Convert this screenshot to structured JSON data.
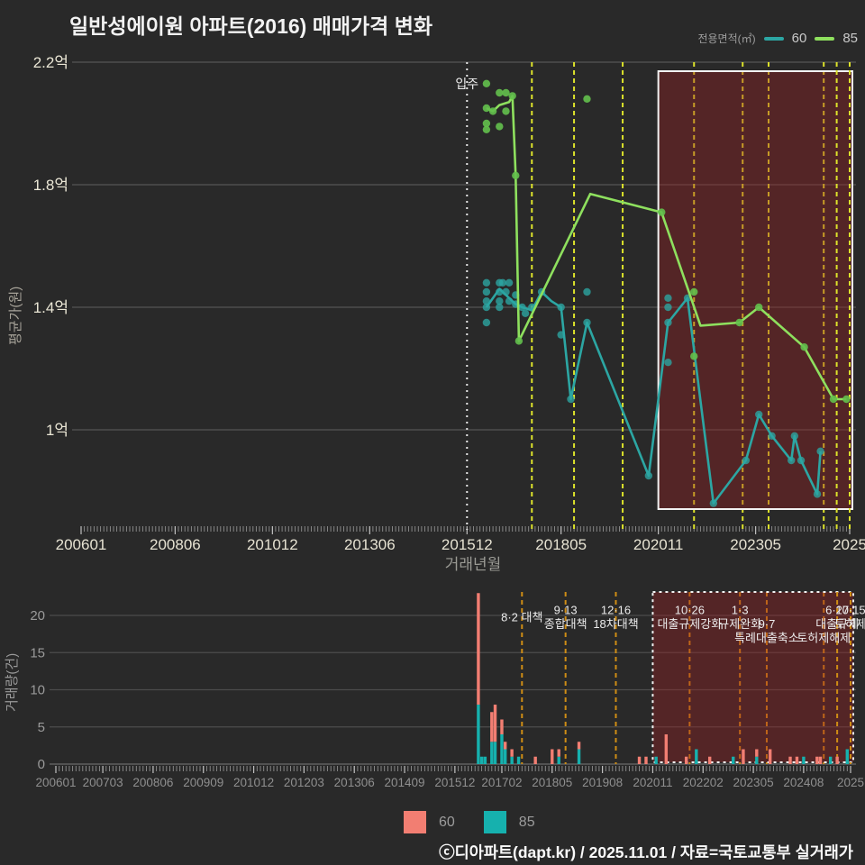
{
  "title": "일반성에이원 아파트(2016) 매매가격 변화",
  "legend_top": {
    "label": "전용면적(㎡)",
    "items": [
      {
        "label": "60",
        "color": "#2ca6a3"
      },
      {
        "label": "85",
        "color": "#8ee05e"
      }
    ]
  },
  "legend_bottom": {
    "items": [
      {
        "label": "60",
        "color": "#f27e72"
      },
      {
        "label": "85",
        "color": "#16b1ae"
      }
    ]
  },
  "footer": "ⓒ디아파트(dapt.kr) / 2025.11.01 / 자료=국토교통부 실거래가",
  "colors": {
    "background": "#292929",
    "grid": "#545454",
    "axis_tick": "#8f8f8f",
    "ytick_label": "#eae6d5",
    "xtick_label_top": "#e6e2d2",
    "xtick_label_bottom": "#8f8f8f",
    "policy_line_top": "#dde32b",
    "policy_line_bottom": "#cf8d15",
    "highlight_fill": "rgba(160,30,34,0.36)",
    "highlight_border": "#f2f2f2",
    "move_in_line": "#e8e8e8",
    "annotation_text": "#ececec"
  },
  "highlight_region": {
    "from": "2020-11",
    "to": "2025-10"
  },
  "move_in": {
    "label": "입주",
    "date": "2015-12"
  },
  "policy_events": [
    {
      "date": "2017-08",
      "rows": [
        {
          "text": "8·2 대책",
          "row": 1.5
        }
      ],
      "late": false
    },
    {
      "date": "2018-09",
      "rows": [
        {
          "text": "9·13",
          "row": 1
        },
        {
          "text": "종합대책",
          "row": 2
        }
      ],
      "late": false
    },
    {
      "date": "2019-12",
      "rows": [
        {
          "text": "12·16",
          "row": 1
        },
        {
          "text": "18차대책",
          "row": 2
        }
      ],
      "late": false
    },
    {
      "date": "2021-10",
      "rows": [
        {
          "text": "10·26",
          "row": 1
        },
        {
          "text": "대출규제강화",
          "row": 2
        }
      ],
      "late": false
    },
    {
      "date": "2023-01",
      "rows": [
        {
          "text": "1·3",
          "row": 1
        },
        {
          "text": "규제완화",
          "row": 2
        }
      ],
      "late": false
    },
    {
      "date": "2023-09",
      "rows": [
        {
          "text": "9·7",
          "row": 2
        },
        {
          "text": "특례대출축소",
          "row": 3
        }
      ],
      "late": false
    },
    {
      "date": "2025-02",
      "rows": [
        {
          "text": "토허제해제",
          "row": 3
        }
      ],
      "late": false
    },
    {
      "date": "2025-06",
      "rows": [
        {
          "text": "6·27",
          "row": 1
        },
        {
          "text": "대출규제",
          "row": 2
        }
      ],
      "late": true
    },
    {
      "date": "2025-10",
      "rows": [
        {
          "text": "10·15",
          "row": 1
        },
        {
          "text": "토허제",
          "row": 2
        }
      ],
      "late": true
    }
  ],
  "chart_data": [
    {
      "type": "scatter",
      "panel": "price",
      "ylabel": "평균가(원)",
      "xlabel": "거래년월",
      "unit": "억원",
      "ylim": [
        0.62,
        2.25
      ],
      "yticks": [
        {
          "value": 2.2,
          "label": "2.2억"
        },
        {
          "value": 1.8,
          "label": "1.8억"
        },
        {
          "value": 1.4,
          "label": "1.4억"
        },
        {
          "value": 1.0,
          "label": "1억"
        }
      ],
      "xticks": [
        {
          "date": "2006-01",
          "label": "200601"
        },
        {
          "date": "2008-06",
          "label": "200806"
        },
        {
          "date": "2010-12",
          "label": "201012"
        },
        {
          "date": "2013-06",
          "label": "201306"
        },
        {
          "date": "2015-12",
          "label": "201512"
        },
        {
          "date": "2018-05",
          "label": "201805"
        },
        {
          "date": "2020-11",
          "label": "202011"
        },
        {
          "date": "2023-05",
          "label": "202305"
        },
        {
          "date": "2025-10",
          "label": "2025"
        }
      ],
      "series": [
        {
          "name": "60",
          "line": [
            [
              "2016-06",
              1.4
            ],
            [
              "2016-08",
              1.43
            ],
            [
              "2016-10",
              1.46
            ],
            [
              "2017-01",
              1.43
            ],
            [
              "2017-03",
              1.41
            ],
            [
              "2017-05",
              1.4
            ],
            [
              "2017-08",
              1.39
            ],
            [
              "2017-11",
              1.45
            ],
            [
              "2018-02",
              1.42
            ],
            [
              "2018-05",
              1.4
            ],
            [
              "2018-08",
              1.1
            ],
            [
              "2019-01",
              1.35
            ],
            [
              "2020-08",
              0.85
            ],
            [
              "2021-02",
              1.35
            ],
            [
              "2021-08",
              1.43
            ],
            [
              "2022-04",
              0.76
            ],
            [
              "2023-02",
              0.9
            ],
            [
              "2023-06",
              1.05
            ],
            [
              "2023-10",
              0.98
            ],
            [
              "2024-04",
              0.9
            ],
            [
              "2024-05",
              0.98
            ],
            [
              "2024-07",
              0.9
            ],
            [
              "2024-12",
              0.79
            ],
            [
              "2025-01",
              0.93
            ]
          ],
          "scatter": [
            [
              "2016-06",
              1.48
            ],
            [
              "2016-06",
              1.45
            ],
            [
              "2016-06",
              1.42
            ],
            [
              "2016-06",
              1.4
            ],
            [
              "2016-06",
              1.35
            ],
            [
              "2016-10",
              1.48
            ],
            [
              "2016-10",
              1.45
            ],
            [
              "2016-10",
              1.42
            ],
            [
              "2016-10",
              1.4
            ],
            [
              "2016-11",
              1.48
            ],
            [
              "2016-12",
              1.45
            ],
            [
              "2017-01",
              1.48
            ],
            [
              "2017-01",
              1.42
            ],
            [
              "2017-03",
              1.44
            ],
            [
              "2017-03",
              1.41
            ],
            [
              "2017-05",
              1.4
            ],
            [
              "2017-06",
              1.38
            ],
            [
              "2017-08",
              1.4
            ],
            [
              "2017-11",
              1.45
            ],
            [
              "2018-05",
              1.4
            ],
            [
              "2018-05",
              1.31
            ],
            [
              "2018-08",
              1.1
            ],
            [
              "2019-01",
              1.45
            ],
            [
              "2019-01",
              1.35
            ],
            [
              "2020-08",
              0.85
            ],
            [
              "2021-02",
              1.43
            ],
            [
              "2021-02",
              1.4
            ],
            [
              "2021-02",
              1.35
            ],
            [
              "2021-02",
              1.22
            ],
            [
              "2021-08",
              1.43
            ],
            [
              "2022-04",
              0.76
            ],
            [
              "2023-02",
              0.9
            ],
            [
              "2023-06",
              1.05
            ],
            [
              "2023-10",
              0.98
            ],
            [
              "2024-04",
              0.9
            ],
            [
              "2024-05",
              0.98
            ],
            [
              "2024-07",
              0.9
            ],
            [
              "2024-12",
              0.79
            ],
            [
              "2025-01",
              0.93
            ]
          ]
        },
        {
          "name": "85",
          "line": [
            [
              "2016-06",
              2.05
            ],
            [
              "2016-08",
              2.04
            ],
            [
              "2016-10",
              2.06
            ],
            [
              "2017-01",
              2.07
            ],
            [
              "2017-02",
              2.09
            ],
            [
              "2017-03",
              1.83
            ],
            [
              "2017-04",
              1.29
            ],
            [
              "2019-02",
              1.77
            ],
            [
              "2020-12",
              1.71
            ],
            [
              "2021-12",
              1.34
            ],
            [
              "2022-12",
              1.35
            ],
            [
              "2023-06",
              1.4
            ],
            [
              "2024-08",
              1.27
            ],
            [
              "2025-05",
              1.1
            ],
            [
              "2025-09",
              1.1
            ]
          ],
          "scatter": [
            [
              "2016-06",
              2.13
            ],
            [
              "2016-06",
              2.05
            ],
            [
              "2016-06",
              2.0
            ],
            [
              "2016-06",
              1.98
            ],
            [
              "2016-08",
              2.04
            ],
            [
              "2016-10",
              2.1
            ],
            [
              "2016-10",
              1.99
            ],
            [
              "2016-12",
              2.1
            ],
            [
              "2016-12",
              2.04
            ],
            [
              "2017-02",
              2.09
            ],
            [
              "2017-03",
              1.83
            ],
            [
              "2017-04",
              1.29
            ],
            [
              "2019-01",
              2.08
            ],
            [
              "2020-12",
              1.71
            ],
            [
              "2021-10",
              1.45
            ],
            [
              "2021-10",
              1.24
            ],
            [
              "2022-12",
              1.35
            ],
            [
              "2023-06",
              1.4
            ],
            [
              "2024-08",
              1.27
            ],
            [
              "2025-05",
              1.1
            ],
            [
              "2025-09",
              1.1
            ]
          ]
        }
      ]
    },
    {
      "type": "bar",
      "panel": "volume",
      "ylabel": "거래량(건)",
      "ylim": [
        0,
        24
      ],
      "yticks": [
        0,
        5,
        10,
        15,
        20
      ],
      "xticks": [
        {
          "date": "2006-01",
          "label": "200601"
        },
        {
          "date": "2007-03",
          "label": "200703"
        },
        {
          "date": "2008-06",
          "label": "200806"
        },
        {
          "date": "2009-09",
          "label": "200909"
        },
        {
          "date": "2010-12",
          "label": "201012"
        },
        {
          "date": "2012-03",
          "label": "201203"
        },
        {
          "date": "2013-06",
          "label": "201306"
        },
        {
          "date": "2014-09",
          "label": "201409"
        },
        {
          "date": "2015-12",
          "label": "201512"
        },
        {
          "date": "2017-02",
          "label": "201702"
        },
        {
          "date": "2018-05",
          "label": "201805"
        },
        {
          "date": "2019-08",
          "label": "201908"
        },
        {
          "date": "2020-11",
          "label": "202011"
        },
        {
          "date": "2022-02",
          "label": "202202"
        },
        {
          "date": "2023-05",
          "label": "202305"
        },
        {
          "date": "2024-08",
          "label": "202408"
        },
        {
          "date": "2025-10",
          "label": "2025"
        }
      ],
      "bars": [
        [
          "2016-07",
          15,
          8
        ],
        [
          "2016-08",
          0,
          1
        ],
        [
          "2016-09",
          0,
          1
        ],
        [
          "2016-11",
          4,
          3
        ],
        [
          "2016-12",
          5,
          3
        ],
        [
          "2017-02",
          2,
          4
        ],
        [
          "2017-03",
          1,
          2
        ],
        [
          "2017-05",
          1,
          1
        ],
        [
          "2017-07",
          0,
          1
        ],
        [
          "2017-12",
          1,
          0
        ],
        [
          "2018-05",
          2,
          0
        ],
        [
          "2018-07",
          1,
          1
        ],
        [
          "2019-01",
          1,
          2
        ],
        [
          "2020-07",
          1,
          0
        ],
        [
          "2020-09",
          1,
          0
        ],
        [
          "2020-12",
          0,
          1
        ],
        [
          "2021-03",
          4,
          0
        ],
        [
          "2021-09",
          1,
          0
        ],
        [
          "2021-12",
          0,
          2
        ],
        [
          "2022-04",
          1,
          0
        ],
        [
          "2022-11",
          0,
          1
        ],
        [
          "2023-02",
          2,
          0
        ],
        [
          "2023-06",
          1,
          1
        ],
        [
          "2023-10",
          2,
          0
        ],
        [
          "2024-04",
          1,
          0
        ],
        [
          "2024-06",
          1,
          0
        ],
        [
          "2024-08",
          0,
          1
        ],
        [
          "2024-12",
          1,
          0
        ],
        [
          "2025-01",
          1,
          0
        ],
        [
          "2025-04",
          0,
          1
        ],
        [
          "2025-06",
          1,
          0
        ],
        [
          "2025-09",
          0,
          2
        ]
      ]
    }
  ]
}
